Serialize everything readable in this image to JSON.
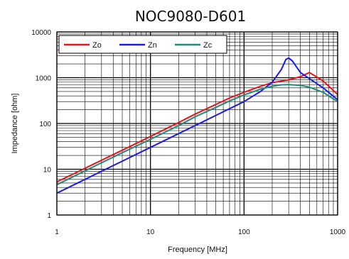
{
  "chart_data": {
    "type": "line",
    "title": "NOC9080-D601",
    "xlabel": "Frequency [MHz]",
    "ylabel": "Impedance [ohm]",
    "x_scale": "log",
    "y_scale": "log",
    "xlim": [
      1,
      1000
    ],
    "ylim": [
      1,
      10000
    ],
    "x_ticks": [
      1,
      10,
      100,
      1000
    ],
    "x_tick_labels": [
      "1",
      "10",
      "100",
      "1000"
    ],
    "y_ticks": [
      1,
      10,
      100,
      1000,
      10000
    ],
    "y_tick_labels": [
      "1",
      "10",
      "100",
      "1000",
      "10000"
    ],
    "grid": true,
    "legend": "top-left",
    "series": [
      {
        "name": "Zo",
        "color": "#e8141b",
        "points": [
          [
            1,
            5.3
          ],
          [
            2,
            10.5
          ],
          [
            5,
            26
          ],
          [
            10,
            52
          ],
          [
            20,
            105
          ],
          [
            30,
            160
          ],
          [
            50,
            260
          ],
          [
            70,
            360
          ],
          [
            100,
            480
          ],
          [
            150,
            650
          ],
          [
            200,
            780
          ],
          [
            300,
            900
          ],
          [
            400,
            1050
          ],
          [
            500,
            1300
          ],
          [
            700,
            850
          ],
          [
            1000,
            430
          ]
        ]
      },
      {
        "name": "Zn",
        "color": "#1a1aeb",
        "points": [
          [
            1,
            3.0
          ],
          [
            2,
            6
          ],
          [
            5,
            15
          ],
          [
            10,
            30
          ],
          [
            20,
            60
          ],
          [
            50,
            150
          ],
          [
            100,
            300
          ],
          [
            150,
            500
          ],
          [
            200,
            800
          ],
          [
            250,
            1500
          ],
          [
            280,
            2500
          ],
          [
            300,
            2700
          ],
          [
            330,
            2300
          ],
          [
            400,
            1300
          ],
          [
            500,
            950
          ],
          [
            700,
            600
          ],
          [
            1000,
            330
          ]
        ]
      },
      {
        "name": "Zc",
        "color": "#1f8a78",
        "points": [
          [
            1,
            4.6
          ],
          [
            2,
            9.2
          ],
          [
            5,
            23
          ],
          [
            10,
            45
          ],
          [
            20,
            90
          ],
          [
            30,
            140
          ],
          [
            50,
            225
          ],
          [
            70,
            310
          ],
          [
            100,
            420
          ],
          [
            150,
            560
          ],
          [
            200,
            650
          ],
          [
            250,
            700
          ],
          [
            300,
            705
          ],
          [
            400,
            680
          ],
          [
            500,
            620
          ],
          [
            700,
            480
          ],
          [
            1000,
            300
          ]
        ]
      }
    ]
  }
}
